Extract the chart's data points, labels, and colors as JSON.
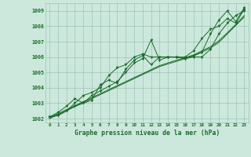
{
  "background_color": "#cce8dc",
  "grid_color": "#9dc4b4",
  "line_color": "#1a6b2a",
  "title": "Graphe pression niveau de la mer (hPa)",
  "xlim": [
    -0.5,
    23.5
  ],
  "ylim": [
    1001.75,
    1009.5
  ],
  "yticks": [
    1002,
    1003,
    1004,
    1005,
    1006,
    1007,
    1008,
    1009
  ],
  "xticks": [
    0,
    1,
    2,
    3,
    4,
    5,
    6,
    7,
    8,
    9,
    10,
    11,
    12,
    13,
    14,
    15,
    16,
    17,
    18,
    19,
    20,
    21,
    22,
    23
  ],
  "series1": [
    1002.1,
    1002.2,
    1002.5,
    1002.8,
    1003.0,
    1003.5,
    1003.8,
    1004.1,
    1004.4,
    1005.0,
    1005.6,
    1005.9,
    1007.1,
    1005.8,
    1006.0,
    1006.0,
    1005.9,
    1006.0,
    1006.0,
    1006.5,
    1007.5,
    1008.2,
    1008.7,
    1009.0
  ],
  "series2": [
    1002.1,
    1002.4,
    1002.8,
    1003.3,
    1003.0,
    1003.2,
    1004.2,
    1004.5,
    1004.3,
    1005.2,
    1005.8,
    1006.1,
    1005.5,
    1006.0,
    1006.0,
    1006.0,
    1005.9,
    1006.1,
    1006.3,
    1007.5,
    1008.4,
    1009.0,
    1008.3,
    1009.2
  ],
  "series3": [
    1002.1,
    1002.2,
    1002.5,
    1003.0,
    1003.5,
    1003.7,
    1004.0,
    1004.8,
    1005.3,
    1005.5,
    1006.0,
    1006.2,
    1006.0,
    1006.0,
    1006.0,
    1006.0,
    1006.0,
    1006.4,
    1007.2,
    1007.8,
    1008.0,
    1008.5,
    1008.2,
    1009.1
  ],
  "trend1": [
    1002.0,
    1002.26,
    1002.52,
    1002.78,
    1003.04,
    1003.3,
    1003.56,
    1003.82,
    1004.08,
    1004.34,
    1004.6,
    1004.86,
    1005.12,
    1005.38,
    1005.55,
    1005.72,
    1005.89,
    1006.06,
    1006.32,
    1006.58,
    1006.95,
    1007.5,
    1008.05,
    1008.6
  ],
  "trend2": [
    1002.1,
    1002.32,
    1002.58,
    1002.84,
    1003.1,
    1003.36,
    1003.62,
    1003.88,
    1004.14,
    1004.4,
    1004.66,
    1004.92,
    1005.18,
    1005.44,
    1005.62,
    1005.79,
    1005.96,
    1006.13,
    1006.4,
    1006.66,
    1007.05,
    1007.58,
    1008.12,
    1008.7
  ]
}
